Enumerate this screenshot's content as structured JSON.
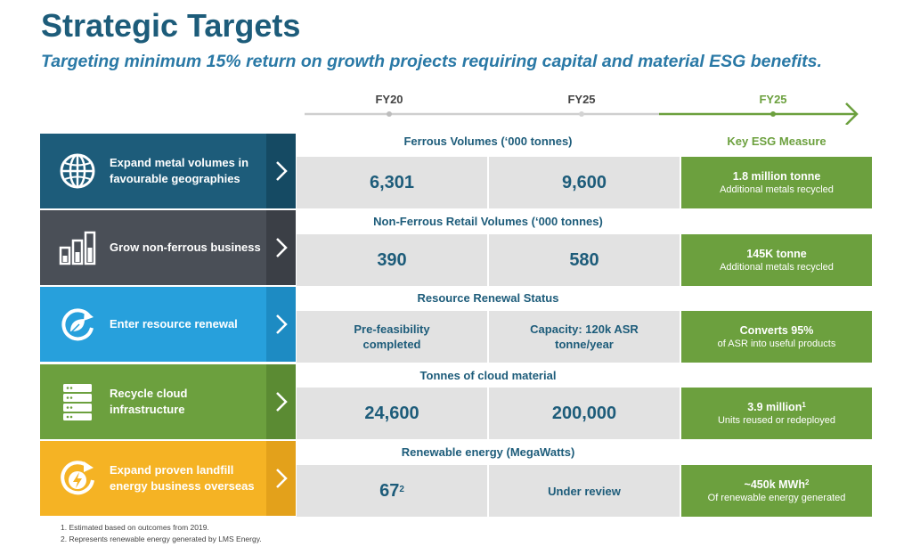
{
  "title": "Strategic Targets",
  "subtitle": "Targeting minimum 15% return on growth projects requiring capital and material ESG benefits.",
  "timeline": {
    "labels": [
      "FY20",
      "FY25",
      "FY25"
    ],
    "colors": {
      "grey": "#cfcfcf",
      "green": "#6ca03e"
    }
  },
  "esg_header": "Key ESG Measure",
  "rows": [
    {
      "label": "Expand metal volumes in favourable geographies",
      "icon": "globe-icon",
      "color": "#1d5c7a",
      "arrow_color": "#154a63",
      "section_header": "Ferrous Volumes (‘000 tonnes)",
      "fy20": "6,301",
      "fy25": "9,600",
      "esg_main": "1.8 million tonne",
      "esg_sup": "",
      "esg_sub": "Additional metals recycled"
    },
    {
      "label": "Grow non-ferrous business",
      "icon": "bar-chart-icon",
      "color": "#4a4f57",
      "arrow_color": "#3b3f46",
      "section_header": "Non-Ferrous Retail Volumes (‘000 tonnes)",
      "fy20": "390",
      "fy25": "580",
      "esg_main": "145K tonne",
      "esg_sup": "",
      "esg_sub": "Additional metals recycled"
    },
    {
      "label": "Enter resource renewal",
      "icon": "recycle-leaf-icon",
      "color": "#27a0dc",
      "arrow_color": "#1d8bc3",
      "section_header": "Resource Renewal Status",
      "fy20": "Pre-feasibility completed",
      "fy25": "Capacity: 120k ASR tonne/year",
      "esg_main": "Converts 95%",
      "esg_sup": "",
      "esg_sub": "of ASR into useful products"
    },
    {
      "label": "Recycle cloud infrastructure",
      "icon": "server-icon",
      "color": "#6ca03e",
      "arrow_color": "#5b8b33",
      "section_header": "Tonnes of cloud material",
      "fy20": "24,600",
      "fy25": "200,000",
      "esg_main": "3.9 million",
      "esg_sup": "1",
      "esg_sub": "Units reused or redeployed"
    },
    {
      "label": "Expand proven landfill energy business overseas",
      "icon": "energy-cycle-icon",
      "color": "#f5b324",
      "arrow_color": "#e3a11b",
      "section_header": "Renewable energy (MegaWatts)",
      "fy20": "67",
      "fy20_sup": "2",
      "fy25": "Under review",
      "esg_main": "~450k MWh",
      "esg_sup": "2",
      "esg_sub": "Of renewable energy generated"
    }
  ],
  "footnotes": [
    "1.   Estimated based on outcomes from 2019.",
    "2.   Represents renewable energy generated by LMS Energy."
  ]
}
